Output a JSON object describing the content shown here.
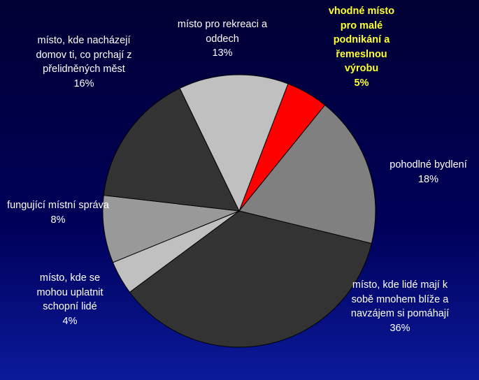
{
  "chart_data": {
    "type": "pie",
    "categories": [
      "vhodné místo pro malé podnikání a řemeslnou výrobu",
      "pohodlné bydlení",
      "místo, kde lidé mají k sobě mnohem blíže a navzájem si pomáhají",
      "místo, kde se mohou uplatnit schopní lidé",
      "fungující místní správa",
      "místo, kde nacházejí domov ti, co prchají z přelidněných měst",
      "místo pro rekreaci a oddech"
    ],
    "values": [
      5,
      18,
      36,
      4,
      8,
      16,
      13
    ],
    "value_labels": [
      "5%",
      "18%",
      "36%",
      "4%",
      "8%",
      "16%",
      "13%"
    ],
    "colors": [
      "#ff0000",
      "#808080",
      "#333333",
      "#c0c0c0",
      "#999999",
      "#333333",
      "#c0c0c0"
    ]
  }
}
